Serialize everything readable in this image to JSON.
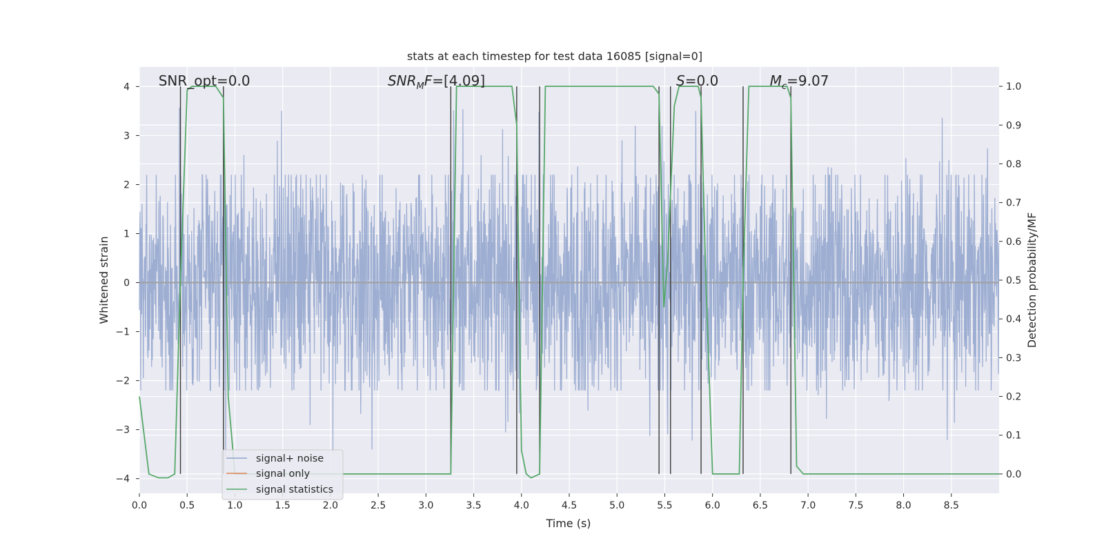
{
  "chart_data": {
    "type": "line",
    "title": "stats at each timestep for test data 16085 [signal=0]",
    "xlabel": "Time (s)",
    "ylabel": "Whitened strain",
    "y2label": "Detection probability/MF",
    "xlim": [
      0,
      9.0
    ],
    "ylim": [
      -4.3,
      4.4
    ],
    "y2lim": [
      -0.05,
      1.05
    ],
    "xticks": [
      "0.0",
      "0.5",
      "1.0",
      "1.5",
      "2.0",
      "2.5",
      "3.0",
      "3.5",
      "4.0",
      "4.5",
      "5.0",
      "5.5",
      "6.0",
      "6.5",
      "7.0",
      "7.5",
      "8.0",
      "8.5"
    ],
    "yticks": [
      "−4",
      "−3",
      "−2",
      "−1",
      "0",
      "1",
      "2",
      "3",
      "4"
    ],
    "y2ticks": [
      "0.0",
      "0.1",
      "0.2",
      "0.3",
      "0.4",
      "0.5",
      "0.6",
      "0.7",
      "0.8",
      "0.9",
      "1.0"
    ],
    "grid": true,
    "legend_position": "lower-left",
    "legend": [
      "signal+ noise",
      "signal only",
      "signal statistics"
    ],
    "annotations": [
      {
        "text": "SNR_opt=0.0",
        "x": 0.2
      },
      {
        "text": "F=[4.09]",
        "prefix": "SNR",
        "subscript": "M",
        "x": 2.6
      },
      {
        "text": "S=0.0",
        "x": 5.62
      },
      {
        "text": "=9.07",
        "prefix": "M",
        "subscript": "c",
        "x": 6.6
      }
    ],
    "vertical_lines_x": [
      0.43,
      0.88,
      3.26,
      3.95,
      4.19,
      5.44,
      5.56,
      5.88,
      6.32,
      6.82
    ],
    "series": [
      {
        "name": "signal+ noise",
        "axis": "left",
        "color": "#8fa3cd",
        "note": "whitened noise, roughly uniform amplitude ~2 with spikes to about ±3.5",
        "envelope": {
          "typical_peak": 2.2,
          "max_spike": 3.6,
          "min_spike": -3.9
        }
      },
      {
        "name": "signal only",
        "axis": "left",
        "color": "#dd8452",
        "values_constant": 0.0
      },
      {
        "name": "signal statistics",
        "axis": "right",
        "color": "#55a868",
        "x": [
          0.0,
          0.05,
          0.1,
          0.2,
          0.3,
          0.37,
          0.43,
          0.5,
          0.55,
          0.8,
          0.88,
          0.93,
          1.0,
          3.26,
          3.32,
          3.9,
          3.95,
          4.0,
          4.05,
          4.1,
          4.19,
          4.25,
          5.38,
          5.44,
          5.49,
          5.53,
          5.6,
          5.65,
          5.85,
          5.88,
          5.93,
          6.0,
          6.28,
          6.32,
          6.38,
          6.45,
          6.78,
          6.82,
          6.88,
          6.95,
          9.0
        ],
        "y": [
          0.2,
          0.1,
          0.0,
          -0.01,
          -0.01,
          0.0,
          0.5,
          0.99,
          1.0,
          1.0,
          0.97,
          0.2,
          0.0,
          0.0,
          1.0,
          1.0,
          0.9,
          0.06,
          0.0,
          -0.01,
          0.0,
          1.0,
          1.0,
          0.98,
          0.43,
          0.55,
          0.95,
          1.0,
          1.0,
          0.97,
          0.5,
          0.0,
          0.0,
          0.5,
          1.0,
          1.0,
          1.0,
          0.97,
          0.02,
          0.0,
          0.0
        ]
      }
    ]
  }
}
